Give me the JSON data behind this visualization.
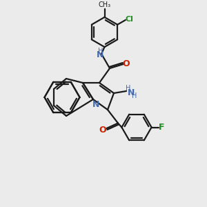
{
  "bg_color": "#ebebeb",
  "bond_color": "#1a1a1a",
  "N_color": "#4169b0",
  "O_color": "#cc2200",
  "F_color": "#228b22",
  "Cl_color": "#228b22",
  "line_width": 1.6,
  "figsize": [
    3.0,
    3.0
  ],
  "dpi": 100,
  "xlim": [
    0,
    10
  ],
  "ylim": [
    0,
    10
  ]
}
